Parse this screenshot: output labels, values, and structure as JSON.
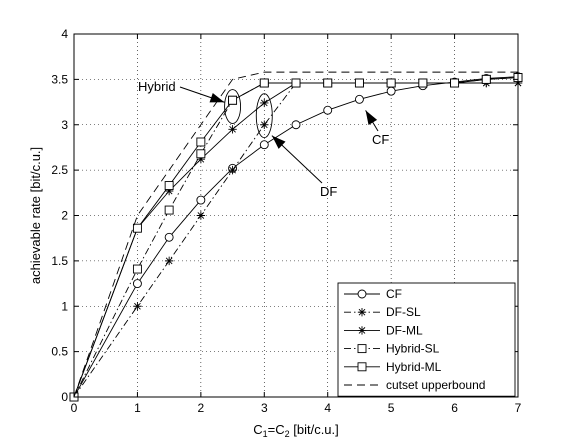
{
  "chart_data": {
    "type": "line",
    "xlabel": "C",
    "xlabel_sub1": "1",
    "xlabel_mid": "=C",
    "xlabel_sub2": "2",
    "xlabel_tail": " [bit/c.u.]",
    "ylabel": "achievable rate [bit/c.u.]",
    "xlim": [
      0,
      7
    ],
    "ylim": [
      0,
      4
    ],
    "xticks": [
      "0",
      "1",
      "2",
      "3",
      "4",
      "5",
      "6",
      "7"
    ],
    "yticks": [
      "0",
      "0.5",
      "1",
      "1.5",
      "2",
      "2.5",
      "3",
      "3.5",
      "4"
    ],
    "grid": "dotted",
    "legend_position": "bottom-right",
    "series": [
      {
        "name": "CF",
        "marker": "circle",
        "line": "solid",
        "x": [
          0,
          1,
          1.5,
          2,
          2.5,
          3,
          3.5,
          4,
          4.5,
          5,
          5.5,
          6,
          6.5,
          7
        ],
        "y": [
          0,
          1.25,
          1.76,
          2.17,
          2.52,
          2.78,
          3.0,
          3.16,
          3.28,
          3.37,
          3.43,
          3.47,
          3.51,
          3.53
        ]
      },
      {
        "name": "DF-SL",
        "marker": "star",
        "line": "dashdot",
        "x": [
          0,
          1,
          1.5,
          2,
          2.5,
          3,
          3.5,
          4,
          4.5,
          5,
          5.5,
          6,
          6.5,
          7
        ],
        "y": [
          0,
          1.0,
          1.5,
          2.0,
          2.5,
          3.0,
          3.46,
          3.46,
          3.46,
          3.46,
          3.46,
          3.46,
          3.46,
          3.46
        ]
      },
      {
        "name": "DF-ML",
        "marker": "star",
        "line": "solid",
        "x": [
          0,
          1,
          1.5,
          2,
          2.5,
          3,
          3.5,
          4,
          4.5,
          5,
          5.5,
          6,
          6.5,
          7
        ],
        "y": [
          0,
          1.86,
          2.27,
          2.62,
          2.95,
          3.24,
          3.46,
          3.46,
          3.46,
          3.46,
          3.46,
          3.46,
          3.46,
          3.46
        ]
      },
      {
        "name": "Hybrid-SL",
        "marker": "square",
        "line": "dashdot",
        "x": [
          0,
          1,
          1.5,
          2,
          2.5,
          3,
          3.5,
          4,
          4.5,
          5,
          5.5,
          6,
          6.5,
          7
        ],
        "y": [
          0,
          1.41,
          2.06,
          2.68,
          3.27,
          3.46,
          3.46,
          3.46,
          3.46,
          3.46,
          3.46,
          3.46,
          3.5,
          3.52
        ]
      },
      {
        "name": "Hybrid-ML",
        "marker": "square",
        "line": "solid",
        "x": [
          0,
          1,
          1.5,
          2,
          2.5,
          3,
          3.5,
          4,
          4.5,
          5,
          5.5,
          6,
          6.5,
          7
        ],
        "y": [
          0,
          1.86,
          2.33,
          2.81,
          3.27,
          3.46,
          3.46,
          3.46,
          3.46,
          3.46,
          3.46,
          3.46,
          3.5,
          3.52
        ]
      },
      {
        "name": "cutset upperbound",
        "marker": "none",
        "line": "dashed",
        "x": [
          0,
          1,
          2,
          2.5,
          3,
          3.5,
          4,
          5,
          6,
          7
        ],
        "y": [
          0,
          2.0,
          3.0,
          3.5,
          3.58,
          3.58,
          3.58,
          3.58,
          3.58,
          3.58
        ]
      }
    ],
    "annotations": [
      {
        "text": "Hybrid",
        "target": [
          2.45,
          3.27
        ]
      },
      {
        "text": "CF",
        "target": [
          4.55,
          3.18
        ]
      },
      {
        "text": "DF",
        "target": [
          3.12,
          2.88
        ]
      }
    ]
  }
}
